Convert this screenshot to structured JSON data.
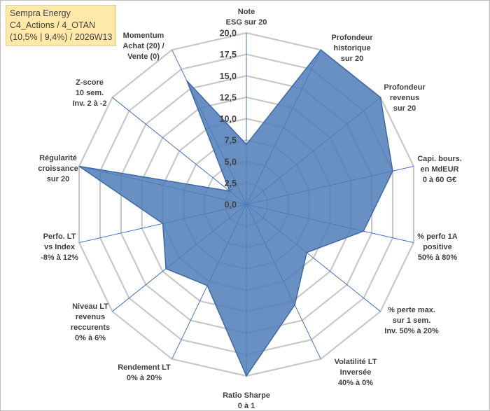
{
  "title_box": {
    "line1": "Sempra Energy",
    "line2": "C4_Actions / 4_OTAN",
    "line3": "(10,5% | 9,4%) / 2026W13"
  },
  "colors": {
    "grid": "#c8c8c8",
    "spoke": "#4472c4",
    "fill": "#4f7db8",
    "stroke": "#3d6aa6",
    "text": "#404040"
  },
  "chart_data": {
    "type": "radar",
    "title": "Sempra Energy",
    "r_min": 0,
    "r_max": 20,
    "r_step": 2.5,
    "tick_labels": [
      "0,0",
      "2,5",
      "5,0",
      "7,5",
      "10,0",
      "12,5",
      "15,0",
      "17,5",
      "20,0"
    ],
    "categories": [
      [
        "Note",
        "ESG sur 20"
      ],
      [
        "Profondeur",
        "historique",
        "sur 20"
      ],
      [
        "Profondeur",
        "revenus",
        "sur 20"
      ],
      [
        "Capi. bours.",
        "en MdEUR",
        "0 à 60 G€"
      ],
      [
        "% perfo 1A",
        "positive",
        "50% à 80%"
      ],
      [
        "% perte max.",
        "sur 1 sem.",
        "Inv. 50% à 20%"
      ],
      [
        "Volatilité LT",
        "Inversée",
        "40% à 0%"
      ],
      [
        "Ratio Sharpe",
        "0 à 1"
      ],
      [
        "Rendement LT",
        "0% à 20%"
      ],
      [
        "Niveau LT",
        "revenus",
        "reccurents",
        "0% à 6%"
      ],
      [
        "Perfo. LT",
        "vs Index",
        "-8% à 12%"
      ],
      [
        "Régularité",
        "croissance",
        "sur 20"
      ],
      [
        "Z-score",
        "10 sem.",
        "Inv. 2 à -2"
      ],
      [
        "Momentum",
        "Achat (20) /",
        "Vente (0)"
      ]
    ],
    "series": [
      {
        "name": "Sempra Energy",
        "values": [
          7,
          20,
          20,
          17.5,
          14,
          9,
          13,
          20,
          10.5,
          12,
          10,
          20,
          2.5,
          16
        ]
      }
    ]
  }
}
